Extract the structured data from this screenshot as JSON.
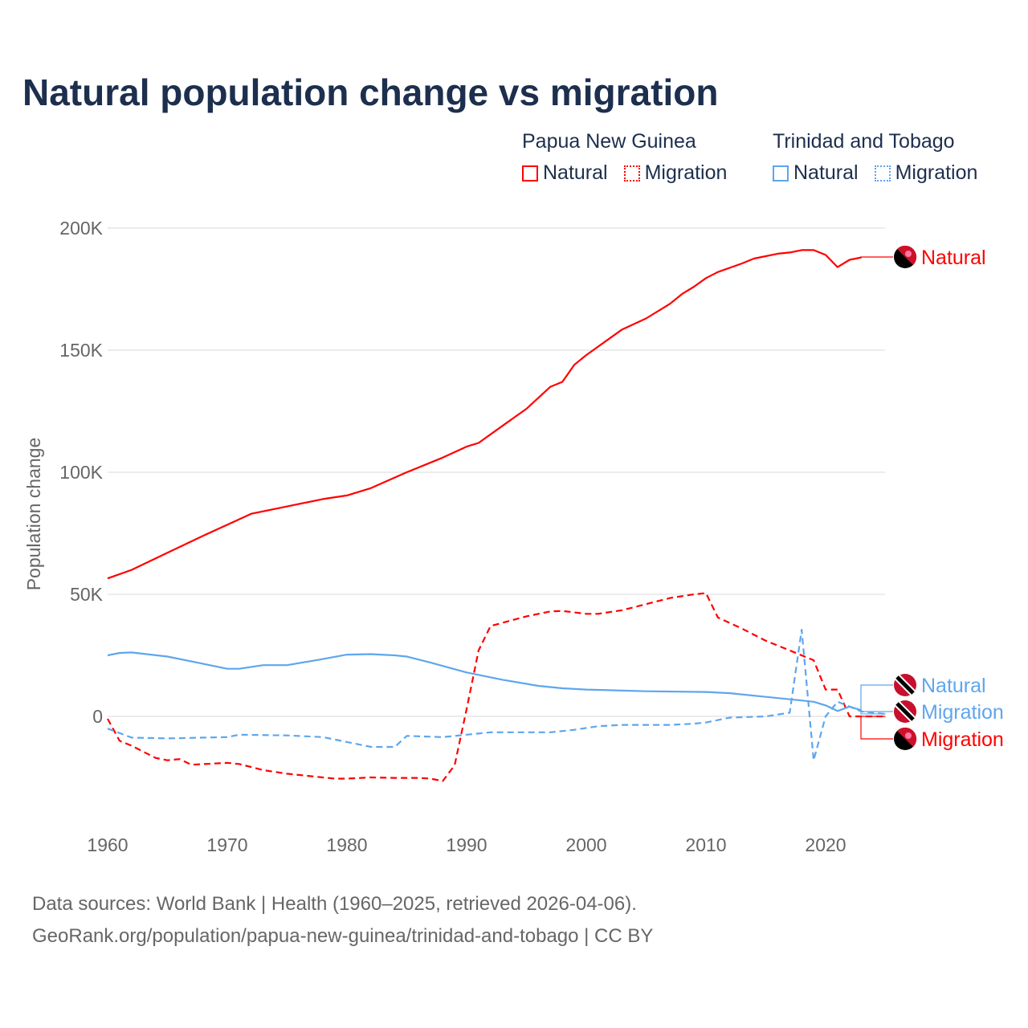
{
  "chart_data": {
    "type": "line",
    "title": "Natural population change vs migration",
    "ylabel": "Population change",
    "xlabel": "",
    "xlim": [
      1960,
      2025
    ],
    "ylim": [
      -40000,
      200000
    ],
    "yticks": [
      0,
      50000,
      100000,
      150000,
      200000
    ],
    "ytick_labels": [
      "0",
      "50K",
      "100K",
      "150K",
      "200K"
    ],
    "xticks": [
      1960,
      1970,
      1980,
      1990,
      2000,
      2010,
      2020
    ],
    "xtick_labels": [
      "1960",
      "1970",
      "1980",
      "1990",
      "2000",
      "2010",
      "2020"
    ],
    "grid": true,
    "legend": {
      "placement": "top-right",
      "groups": [
        {
          "title": "Papua New Guinea",
          "items": [
            "Natural",
            "Migration"
          ]
        },
        {
          "title": "Trinidad and Tobago",
          "items": [
            "Natural",
            "Migration"
          ]
        }
      ]
    },
    "series": [
      {
        "name": "Natural",
        "country": "Papua New Guinea",
        "color": "#ff0000",
        "dash": false,
        "points": [
          [
            1960,
            56500
          ],
          [
            1962,
            60000
          ],
          [
            1965,
            67000
          ],
          [
            1968,
            74000
          ],
          [
            1970,
            78500
          ],
          [
            1972,
            83000
          ],
          [
            1975,
            86000
          ],
          [
            1978,
            89000
          ],
          [
            1980,
            90500
          ],
          [
            1982,
            93500
          ],
          [
            1985,
            100000
          ],
          [
            1988,
            106000
          ],
          [
            1990,
            110500
          ],
          [
            1991,
            112000
          ],
          [
            1993,
            119000
          ],
          [
            1995,
            126000
          ],
          [
            1997,
            135000
          ],
          [
            1998,
            137000
          ],
          [
            1999,
            144000
          ],
          [
            2000,
            148000
          ],
          [
            2002,
            155000
          ],
          [
            2003,
            158500
          ],
          [
            2005,
            163000
          ],
          [
            2007,
            169000
          ],
          [
            2008,
            173000
          ],
          [
            2009,
            176000
          ],
          [
            2010,
            179500
          ],
          [
            2011,
            182000
          ],
          [
            2013,
            185500
          ],
          [
            2014,
            187500
          ],
          [
            2016,
            189500
          ],
          [
            2017,
            190000
          ],
          [
            2018,
            191000
          ],
          [
            2019,
            191000
          ],
          [
            2020,
            189000
          ],
          [
            2021,
            184000
          ],
          [
            2022,
            187000
          ],
          [
            2023,
            188000
          ]
        ]
      },
      {
        "name": "Migration",
        "country": "Papua New Guinea",
        "color": "#ff0000",
        "dash": true,
        "points": [
          [
            1960,
            -1000
          ],
          [
            1961,
            -10000
          ],
          [
            1962,
            -12000
          ],
          [
            1964,
            -17000
          ],
          [
            1965,
            -18000
          ],
          [
            1966,
            -17500
          ],
          [
            1967,
            -19800
          ],
          [
            1970,
            -19000
          ],
          [
            1971,
            -19500
          ],
          [
            1973,
            -22000
          ],
          [
            1975,
            -23500
          ],
          [
            1977,
            -24500
          ],
          [
            1979,
            -25500
          ],
          [
            1980,
            -25500
          ],
          [
            1982,
            -25000
          ],
          [
            1984,
            -25200
          ],
          [
            1986,
            -25200
          ],
          [
            1987,
            -25500
          ],
          [
            1988,
            -26500
          ],
          [
            1989,
            -20000
          ],
          [
            1990,
            3000
          ],
          [
            1991,
            27000
          ],
          [
            1992,
            37000
          ],
          [
            1995,
            41000
          ],
          [
            1997,
            43000
          ],
          [
            1998,
            43200
          ],
          [
            2000,
            42000
          ],
          [
            2001,
            42000
          ],
          [
            2003,
            43500
          ],
          [
            2005,
            46000
          ],
          [
            2007,
            48500
          ],
          [
            2009,
            50000
          ],
          [
            2010,
            50500
          ],
          [
            2011,
            40500
          ],
          [
            2013,
            36000
          ],
          [
            2015,
            31000
          ],
          [
            2017,
            27000
          ],
          [
            2019,
            23000
          ],
          [
            2020,
            11000
          ],
          [
            2021,
            11000
          ],
          [
            2022,
            0
          ],
          [
            2025,
            0
          ]
        ]
      },
      {
        "name": "Natural",
        "country": "Trinidad and Tobago",
        "color": "#5ea6ee",
        "dash": false,
        "points": [
          [
            1960,
            25000
          ],
          [
            1961,
            26000
          ],
          [
            1962,
            26200
          ],
          [
            1965,
            24500
          ],
          [
            1968,
            21500
          ],
          [
            1970,
            19500
          ],
          [
            1971,
            19500
          ],
          [
            1973,
            21000
          ],
          [
            1975,
            21000
          ],
          [
            1978,
            23500
          ],
          [
            1980,
            25300
          ],
          [
            1982,
            25500
          ],
          [
            1984,
            25000
          ],
          [
            1985,
            24500
          ],
          [
            1987,
            22000
          ],
          [
            1990,
            18000
          ],
          [
            1993,
            15000
          ],
          [
            1996,
            12500
          ],
          [
            1998,
            11500
          ],
          [
            2000,
            11000
          ],
          [
            2005,
            10300
          ],
          [
            2010,
            10000
          ],
          [
            2012,
            9500
          ],
          [
            2015,
            8000
          ],
          [
            2018,
            6500
          ],
          [
            2019,
            6000
          ],
          [
            2020,
            4500
          ],
          [
            2021,
            2200
          ],
          [
            2022,
            4000
          ],
          [
            2023,
            2500
          ]
        ]
      },
      {
        "name": "Migration",
        "country": "Trinidad and Tobago",
        "color": "#5ea6ee",
        "dash": true,
        "points": [
          [
            1960,
            -5000
          ],
          [
            1962,
            -8700
          ],
          [
            1965,
            -9000
          ],
          [
            1970,
            -8500
          ],
          [
            1971,
            -7500
          ],
          [
            1975,
            -7800
          ],
          [
            1978,
            -8500
          ],
          [
            1980,
            -10500
          ],
          [
            1982,
            -12500
          ],
          [
            1984,
            -12500
          ],
          [
            1985,
            -8000
          ],
          [
            1988,
            -8500
          ],
          [
            1990,
            -7500
          ],
          [
            1992,
            -6500
          ],
          [
            1997,
            -6500
          ],
          [
            1999,
            -5500
          ],
          [
            2001,
            -4000
          ],
          [
            2003,
            -3500
          ],
          [
            2007,
            -3500
          ],
          [
            2009,
            -3000
          ],
          [
            2010,
            -2500
          ],
          [
            2012,
            -500
          ],
          [
            2015,
            0
          ],
          [
            2017,
            1500
          ],
          [
            2018,
            35500
          ],
          [
            2019,
            -18000
          ],
          [
            2020,
            0
          ],
          [
            2021,
            6000
          ],
          [
            2022,
            4000
          ],
          [
            2023,
            2000
          ],
          [
            2025,
            1000
          ]
        ]
      }
    ],
    "end_labels": [
      "Natural",
      "Natural",
      "Migration",
      "Migration"
    ]
  },
  "footer": {
    "line1": "Data sources: World Bank | Health (1960–2025, retrieved 2026-04-06).",
    "line2": "GeoRank.org/population/papua-new-guinea/trinidad-and-tobago | CC BY"
  }
}
